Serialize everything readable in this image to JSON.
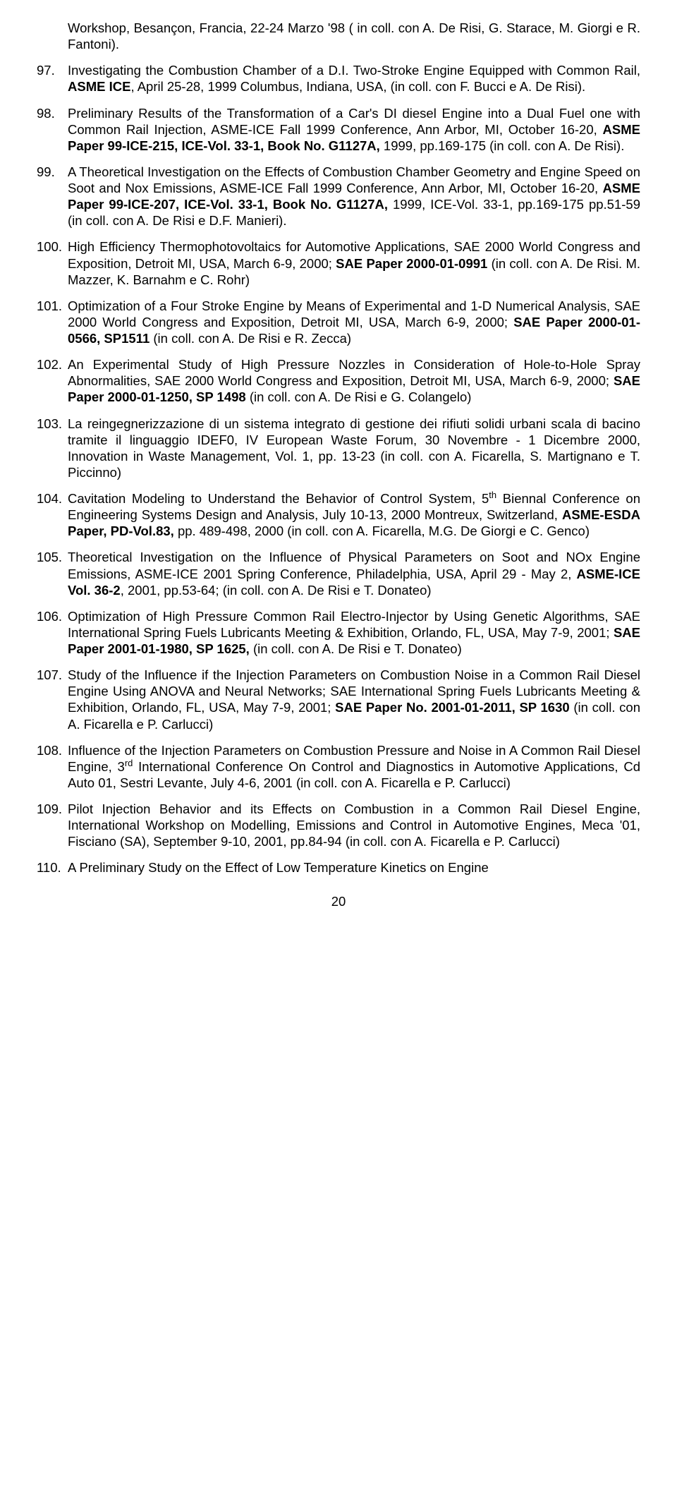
{
  "continued": {
    "text_a": "Workshop, Besançon, Francia, 22-24 Marzo '98 ( in coll. con A. De Risi, G. Starace, M. Giorgi e R. Fantoni)."
  },
  "refs": [
    {
      "pre": "Investigating the Combustion Chamber of a D.I. Two-Stroke Engine Equipped with Common Rail, ",
      "bold": "ASME ICE",
      "post": ", April 25-28, 1999 Columbus, Indiana, USA, (in coll. con F. Bucci e A. De Risi)."
    },
    {
      "pre": "Preliminary Results of the Transformation of a Car's DI diesel Engine into a Dual Fuel one with Common Rail Injection, ASME-ICE Fall 1999 Conference, Ann Arbor, MI, October 16-20,  ",
      "bold": "ASME Paper 99-ICE-215, ICE-Vol. 33-1, Book No. G1127A,",
      "post": " 1999, pp.169-175 (in coll. con A. De Risi)."
    },
    {
      "pre": "A Theoretical Investigation on the Effects of Combustion Chamber Geometry and Engine Speed on Soot and Nox Emissions, ASME-ICE Fall 1999 Conference, Ann Arbor, MI, October 16-20, ",
      "bold": "ASME Paper 99-ICE-207, ICE-Vol. 33-1, Book No. G1127A,",
      "post": " 1999, ICE-Vol. 33-1, pp.169-175 pp.51-59  (in coll. con A. De Risi e D.F. Manieri)."
    },
    {
      "pre": "High Efficiency Thermophotovoltaics for Automotive Applications, SAE 2000 World Congress and Exposition, Detroit MI, USA, March 6-9, 2000; ",
      "bold": "SAE Paper 2000-01-0991",
      "post": " (in coll. con A. De Risi. M. Mazzer, K. Barnahm e C. Rohr)"
    },
    {
      "pre": "Optimization of a Four Stroke Engine by Means of Experimental and 1-D Numerical Analysis, SAE 2000 World Congress and Exposition, Detroit MI, USA, March 6-9, 2000; ",
      "bold": "SAE Paper 2000-01-0566, SP1511",
      "post": " (in coll. con A. De Risi e R. Zecca)"
    },
    {
      "pre": "An Experimental Study of High Pressure Nozzles in Consideration of Hole-to-Hole Spray Abnormalities, SAE 2000 World Congress and Exposition, Detroit MI, USA, March 6-9, 2000; ",
      "bold": "SAE Paper 2000-01-1250, SP 1498",
      "post": " (in coll. con A. De Risi e G. Colangelo)"
    },
    {
      "pre": "La reingegnerizzazione di un sistema integrato di gestione dei rifiuti solidi urbani scala di bacino tramite il linguaggio IDEF0, IV European Waste Forum, 30 Novembre - 1 Dicembre 2000, Innovation in Waste Management, Vol. 1, pp. 13-23  (in coll. con A. Ficarella, S. Martignano e T. Piccinno)",
      "bold": "",
      "post": ""
    },
    {
      "pre": "Cavitation Modeling to Understand the Behavior of Control System, 5",
      "sup": "th",
      "pre2": " Biennal Conference on Engineering Systems Design and Analysis, July 10-13, 2000 Montreux, Switzerland, ",
      "bold": "ASME-ESDA Paper, PD-Vol.83,",
      "post": " pp. 489-498, 2000  (in coll. con A. Ficarella, M.G. De Giorgi e C. Genco)"
    },
    {
      "pre": "Theoretical Investigation on the Influence of Physical Parameters on Soot and NOx  Engine Emissions, ASME-ICE 2001 Spring Conference, Philadelphia, USA, April 29 - May 2, ",
      "bold": "ASME-ICE Vol. 36-2",
      "post": ", 2001, pp.53-64; (in coll. con A. De Risi e T. Donateo)"
    },
    {
      "pre": "Optimization of High Pressure Common Rail Electro-Injector by Using Genetic Algorithms, SAE International Spring Fuels Lubricants Meeting & Exhibition, Orlando, FL, USA, May 7-9, 2001; ",
      "bold": "SAE Paper 2001-01-1980, SP 1625,",
      "post": " (in coll. con A. De Risi e T. Donateo)"
    },
    {
      "pre": "Study of the Influence if the Injection Parameters on Combustion Noise in a Common Rail Diesel Engine Using ANOVA and Neural Networks; SAE International Spring Fuels Lubricants Meeting & Exhibition, Orlando, FL, USA, May 7-9, 2001; ",
      "bold": "SAE Paper No. 2001-01-2011, SP 1630",
      "post": " (in coll. con A. Ficarella e P. Carlucci)"
    },
    {
      "pre": "Influence of the Injection Parameters on Combustion Pressure and Noise in A Common Rail Diesel Engine, 3",
      "sup": "rd",
      "pre2": " International Conference On Control and Diagnostics in Automotive Applications, Cd Auto 01, Sestri Levante, July 4-6, 2001 (in coll. con A. Ficarella e P. Carlucci)",
      "bold": "",
      "post": ""
    },
    {
      "pre": "Pilot Injection Behavior and its Effects on Combustion in a Common Rail Diesel Engine, International Workshop on Modelling, Emissions and Control in Automotive Engines, Meca '01, Fisciano (SA), September 9-10, 2001, pp.84-94 (in coll. con A. Ficarella e P. Carlucci)",
      "bold": "",
      "post": ""
    },
    {
      "pre": "A Preliminary Study on the Effect of Low Temperature Kinetics on Engine",
      "bold": "",
      "post": ""
    }
  ],
  "page_number": "20"
}
